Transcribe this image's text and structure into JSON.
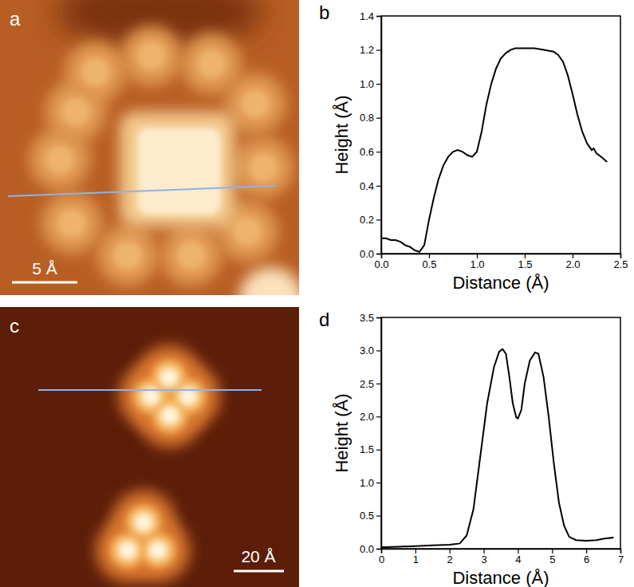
{
  "chart_data": [
    {
      "type": "image",
      "panel_label": "a",
      "scale_bar_label": "5 Å"
    },
    {
      "type": "line",
      "panel_label": "b",
      "x_label": "Distance (Å)",
      "y_label": "Height (Å)",
      "color": "#000000",
      "line_style": "solid",
      "x": [
        0.0,
        0.05,
        0.1,
        0.15,
        0.2,
        0.25,
        0.3,
        0.35,
        0.4,
        0.45,
        0.5,
        0.55,
        0.6,
        0.65,
        0.7,
        0.75,
        0.8,
        0.85,
        0.9,
        0.95,
        1.0,
        1.05,
        1.1,
        1.15,
        1.2,
        1.25,
        1.3,
        1.35,
        1.4,
        1.5,
        1.6,
        1.7,
        1.8,
        1.85,
        1.9,
        1.95,
        2.0,
        2.05,
        2.1,
        2.15,
        2.2,
        2.22,
        2.25,
        2.3,
        2.36
      ],
      "values": [
        0.09,
        0.09,
        0.08,
        0.08,
        0.07,
        0.05,
        0.04,
        0.02,
        0.01,
        0.05,
        0.2,
        0.33,
        0.44,
        0.52,
        0.57,
        0.6,
        0.61,
        0.6,
        0.58,
        0.57,
        0.6,
        0.72,
        0.88,
        1.0,
        1.09,
        1.15,
        1.18,
        1.2,
        1.21,
        1.21,
        1.21,
        1.2,
        1.19,
        1.17,
        1.13,
        1.05,
        0.94,
        0.82,
        0.72,
        0.65,
        0.61,
        0.62,
        0.59,
        0.57,
        0.54
      ],
      "xlim": [
        0,
        2.5
      ],
      "xticks": [
        {
          "value": 0,
          "label": "0.0"
        },
        0.5,
        {
          "value": 1,
          "label": "1.0"
        },
        1.5,
        {
          "value": 2,
          "label": "2.0"
        },
        2.5
      ],
      "ylim": [
        0,
        1.4
      ],
      "yticks": [
        {
          "value": 0,
          "label": "0.0"
        },
        0.2,
        0.4,
        0.6,
        0.8,
        {
          "value": 1,
          "label": "1.0"
        },
        1.2,
        1.4
      ]
    },
    {
      "type": "image",
      "panel_label": "c",
      "scale_bar_label": "20 Å"
    },
    {
      "type": "line",
      "panel_label": "d",
      "x_label": "Distance (Å)",
      "y_label": "Height (Å)",
      "color": "#000000",
      "line_style": "solid",
      "x": [
        0,
        0.5,
        1.0,
        1.5,
        2.0,
        2.3,
        2.5,
        2.7,
        2.9,
        3.1,
        3.3,
        3.45,
        3.55,
        3.65,
        3.75,
        3.85,
        3.95,
        4.0,
        4.1,
        4.2,
        4.35,
        4.5,
        4.6,
        4.75,
        4.9,
        5.05,
        5.2,
        5.35,
        5.5,
        5.7,
        6.0,
        6.3,
        6.5,
        6.8
      ],
      "values": [
        0.02,
        0.03,
        0.04,
        0.05,
        0.06,
        0.08,
        0.2,
        0.6,
        1.4,
        2.2,
        2.75,
        2.98,
        3.02,
        2.95,
        2.6,
        2.2,
        1.99,
        1.97,
        2.1,
        2.5,
        2.85,
        2.97,
        2.95,
        2.6,
        2.0,
        1.3,
        0.7,
        0.35,
        0.18,
        0.13,
        0.12,
        0.13,
        0.15,
        0.17
      ],
      "xlim": [
        0,
        7
      ],
      "xticks": [
        0,
        1,
        2,
        3,
        4,
        5,
        6,
        7
      ],
      "ylim": [
        0,
        3.5
      ],
      "yticks": [
        {
          "value": 0,
          "label": "0.0"
        },
        0.5,
        {
          "value": 1,
          "label": "1.0"
        },
        1.5,
        {
          "value": 2,
          "label": "2.0"
        },
        2.5,
        {
          "value": 3,
          "label": "3.0"
        },
        3.5
      ]
    }
  ]
}
